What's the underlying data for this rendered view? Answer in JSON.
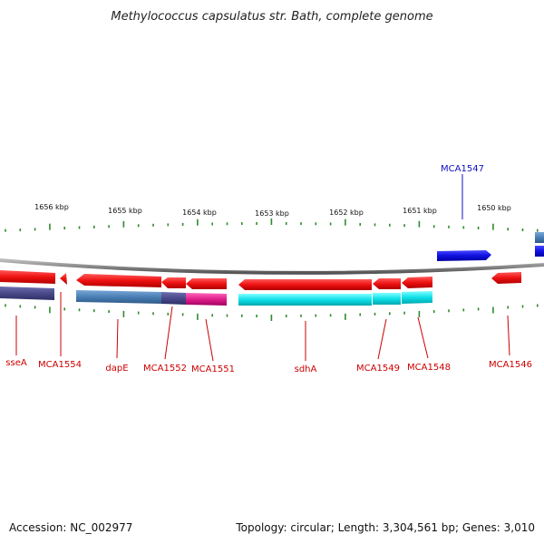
{
  "title": "Methylococcus capsulatus str. Bath, complete genome",
  "footer": {
    "accession": "Accession: NC_002977",
    "summary": "Topology: circular; Length: 3,304,561 bp; Genes: 3,010"
  },
  "colors": {
    "backbone": "#8a8a8a",
    "tick": "#2e8b2e",
    "gene_forward": "#1010e0",
    "gene_reverse": "#ee1111",
    "label_forward": "#1010c0",
    "label_reverse": "#cc0000",
    "cds_steelblue": "#4a7fb5",
    "cds_slate": "#4a4a8a",
    "cds_magenta": "#e0208a",
    "cds_cyan": "#10e0e8"
  },
  "scale": {
    "unit": "kbp",
    "ticks": [
      {
        "label": "1656 kbp"
      },
      {
        "label": "1655 kbp"
      },
      {
        "label": "1654 kbp"
      },
      {
        "label": "1653 kbp"
      },
      {
        "label": "1652 kbp"
      },
      {
        "label": "1651 kbp"
      },
      {
        "label": "1650 kbp"
      }
    ]
  },
  "genes": {
    "forward": [
      {
        "name": "MCA1547"
      }
    ],
    "reverse": [
      {
        "name": "sseA"
      },
      {
        "name": "MCA1554"
      },
      {
        "name": "dapE"
      },
      {
        "name": "MCA1552"
      },
      {
        "name": "MCA1551"
      },
      {
        "name": "sdhA"
      },
      {
        "name": "MCA1549"
      },
      {
        "name": "MCA1548"
      },
      {
        "name": "MCA1546"
      }
    ]
  }
}
